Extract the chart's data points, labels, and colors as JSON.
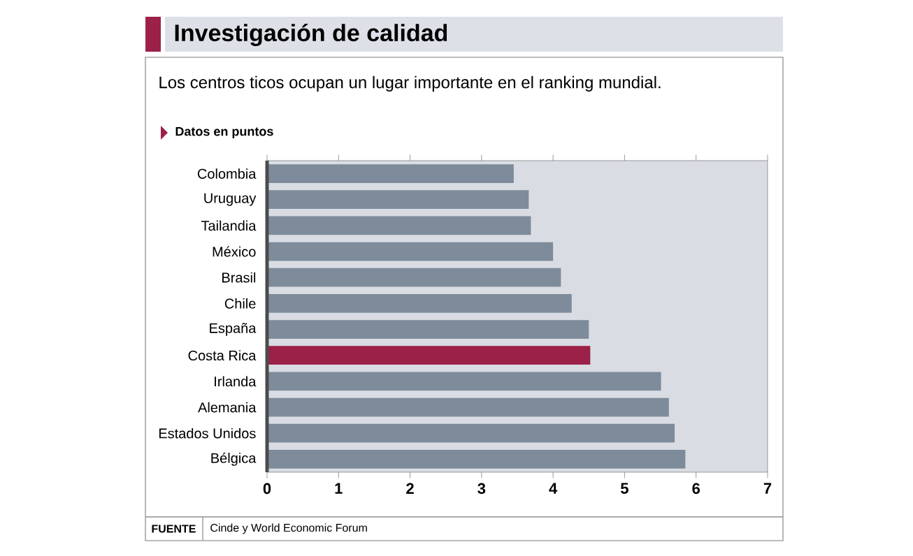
{
  "chart_data": {
    "type": "bar",
    "orientation": "horizontal",
    "title": "Investigación de calidad",
    "subtitle": "Los centros ticos ocupan un lugar importante en el ranking mundial.",
    "categories": [
      "Colombia",
      "Uruguay",
      "Tailandia",
      "México",
      "Brasil",
      "Chile",
      "España",
      "Costa Rica",
      "Irlanda",
      "Alemania",
      "Estados Unidos",
      "Bélgica"
    ],
    "values": [
      3.45,
      3.66,
      3.69,
      4.0,
      4.11,
      4.26,
      4.5,
      4.52,
      5.51,
      5.62,
      5.7,
      5.85
    ],
    "colors": [
      "#7d8b9b",
      "#7d8b9b",
      "#7d8b9b",
      "#7d8b9b",
      "#7d8b9b",
      "#7d8b9b",
      "#7d8b9b",
      "#9b2148",
      "#7d8b9b",
      "#7d8b9b",
      "#7d8b9b",
      "#7d8b9b"
    ],
    "xlim": [
      0,
      7
    ],
    "xticks": [
      0,
      1,
      2,
      3,
      4,
      5,
      6,
      7
    ],
    "annotations": [
      "Datos en puntos",
      "FUENTE",
      "Cinde y World Economic Forum"
    ]
  }
}
